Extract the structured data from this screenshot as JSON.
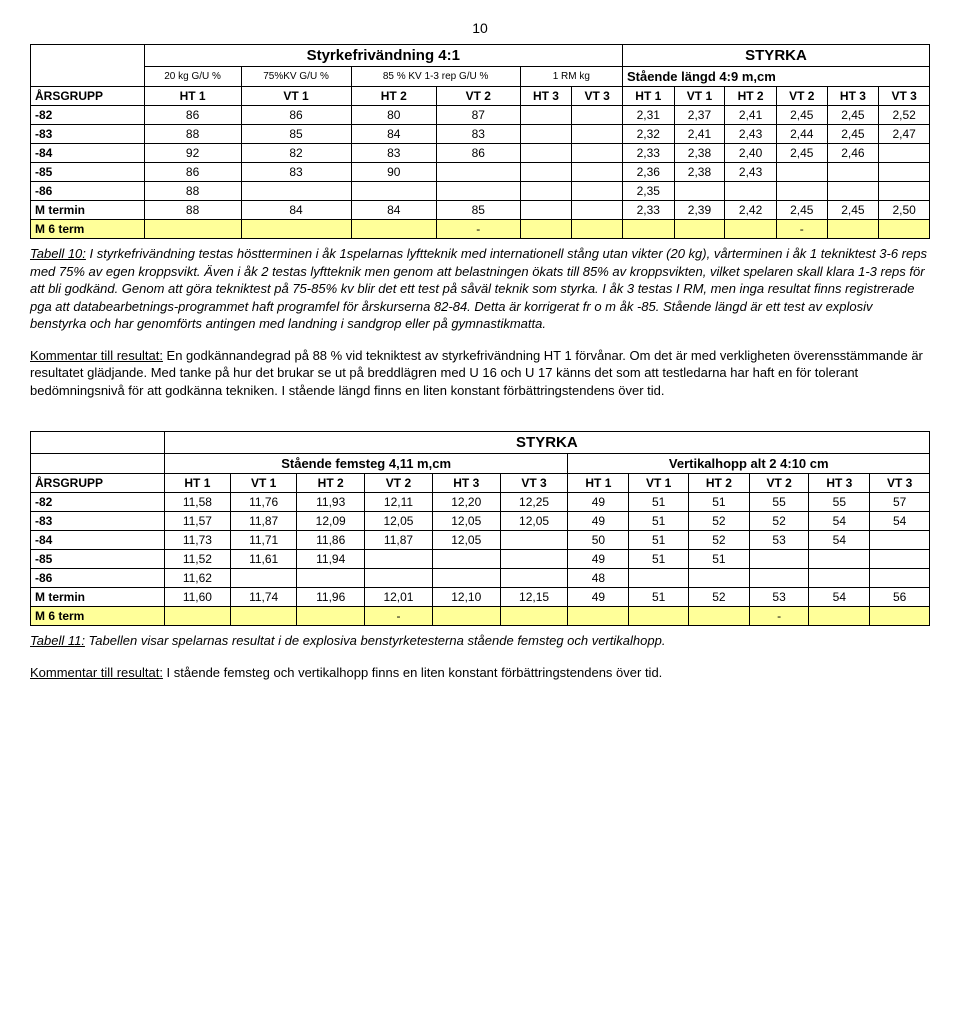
{
  "page_number": "10",
  "table1": {
    "title": "STYRKA",
    "left_header": "Styrkefrivändning 4:1",
    "right_header": "Stående längd 4:9  m,cm",
    "sub_cols_left": [
      "20 kg\nG/U %",
      "75%KV\nG/U %",
      "85 % KV\n1-3 rep G/U %",
      "1 RM kg"
    ],
    "col_group": "ÅRSGRUPP",
    "term_cols": [
      "HT 1",
      "VT 1",
      "HT 2",
      "VT 2",
      "HT 3",
      "VT 3",
      "HT 1",
      "VT 1",
      "HT 2",
      "VT 2",
      "HT 3",
      "VT 3"
    ],
    "rows": [
      {
        "label": "-82",
        "vals": [
          "86",
          "86",
          "80",
          "87",
          "",
          "",
          "2,31",
          "2,37",
          "2,41",
          "2,45",
          "2,45",
          "2,52"
        ]
      },
      {
        "label": "-83",
        "vals": [
          "88",
          "85",
          "84",
          "83",
          "",
          "",
          "2,32",
          "2,41",
          "2,43",
          "2,44",
          "2,45",
          "2,47"
        ]
      },
      {
        "label": "-84",
        "vals": [
          "92",
          "82",
          "83",
          "86",
          "",
          "",
          "2,33",
          "2,38",
          "2,40",
          "2,45",
          "2,46",
          ""
        ]
      },
      {
        "label": "-85",
        "vals": [
          "86",
          "83",
          "90",
          "",
          "",
          "",
          "2,36",
          "2,38",
          "2,43",
          "",
          "",
          ""
        ]
      },
      {
        "label": "-86",
        "vals": [
          "88",
          "",
          "",
          "",
          "",
          "",
          "2,35",
          "",
          "",
          "",
          "",
          ""
        ]
      },
      {
        "label": "M  termin",
        "vals": [
          "88",
          "84",
          "84",
          "85",
          "",
          "",
          "2,33",
          "2,39",
          "2,42",
          "2,45",
          "2,45",
          "2,50"
        ]
      },
      {
        "label": "M  6 term",
        "vals": [
          "",
          "",
          "",
          "-",
          "",
          "",
          "",
          "",
          "",
          "-",
          "",
          ""
        ],
        "yellow": true
      }
    ]
  },
  "text1_caption": "Tabell 10:",
  "text1_italic": " I styrkefrivändning testas höstterminen i åk 1spelarnas lyftteknik med internationell stång utan vikter (20 kg), vårterminen i åk 1 tekniktest 3-6 reps med 75% av egen kroppsvikt. Även i åk 2 testas lyftteknik men genom att belastningen ökats till 85% av kroppsvikten, vilket spelaren skall klara 1-3 reps för att bli godkänd. Genom att göra tekniktest på 75-85% kv blir det ett test på såväl teknik som styrka. I åk 3 testas I RM, men inga resultat finns registrerade pga att databearbetnings-programmet haft programfel för årskurserna 82-84. Detta är korrigerat fr o m åk -85.\nStående längd är ett test av explosiv benstyrka och har genomförts antingen med landning i sandgrop eller på gymnastikmatta.",
  "text2_label": "Kommentar till resultat:",
  "text2_body": " En godkännandegrad på 88 % vid tekniktest av styrkefrivändning HT 1 förvånar. Om det är med verkligheten överensstämmande är resultatet glädjande. Med tanke på hur det brukar se ut på breddlägren med U 16 och U 17 känns det som att testledarna har haft en för tolerant bedömningsnivå för att godkänna tekniken.\nI stående längd finns en liten konstant förbättringstendens över tid.",
  "table2": {
    "title": "STYRKA",
    "left_header": "Stående femsteg 4,11  m,cm",
    "right_header": "Vertikalhopp alt 2 4:10  cm",
    "col_group": "ÅRSGRUPP",
    "term_cols": [
      "HT 1",
      "VT 1",
      "HT 2",
      "VT 2",
      "HT 3",
      "VT 3",
      "HT 1",
      "VT 1",
      "HT 2",
      "VT 2",
      "HT 3",
      "VT 3"
    ],
    "rows": [
      {
        "label": "-82",
        "vals": [
          "11,58",
          "11,76",
          "11,93",
          "12,11",
          "12,20",
          "12,25",
          "49",
          "51",
          "51",
          "55",
          "55",
          "57"
        ]
      },
      {
        "label": "-83",
        "vals": [
          "11,57",
          "11,87",
          "12,09",
          "12,05",
          "12,05",
          "12,05",
          "49",
          "51",
          "52",
          "52",
          "54",
          "54"
        ]
      },
      {
        "label": "-84",
        "vals": [
          "11,73",
          "11,71",
          "11,86",
          "11,87",
          "12,05",
          "",
          "50",
          "51",
          "52",
          "53",
          "54",
          ""
        ]
      },
      {
        "label": "-85",
        "vals": [
          "11,52",
          "11,61",
          "11,94",
          "",
          "",
          "",
          "49",
          "51",
          "51",
          "",
          "",
          ""
        ]
      },
      {
        "label": "-86",
        "vals": [
          "11,62",
          "",
          "",
          "",
          "",
          "",
          "48",
          "",
          "",
          "",
          "",
          ""
        ]
      },
      {
        "label": "M  termin",
        "vals": [
          "11,60",
          "11,74",
          "11,96",
          "12,01",
          "12,10",
          "12,15",
          "49",
          "51",
          "52",
          "53",
          "54",
          "56"
        ]
      },
      {
        "label": "M  6 term",
        "vals": [
          "",
          "",
          "",
          "-",
          "",
          "",
          "",
          "",
          "",
          "-",
          "",
          ""
        ],
        "yellow": true
      }
    ]
  },
  "text3_caption": "Tabell 11:",
  "text3_italic": " Tabellen visar spelarnas resultat i de explosiva benstyrketesterna stående femsteg och vertikalhopp.",
  "text4_label": "Kommentar till resultat:",
  "text4_body": " I stående femsteg och vertikalhopp finns en liten konstant förbättringstendens över tid."
}
